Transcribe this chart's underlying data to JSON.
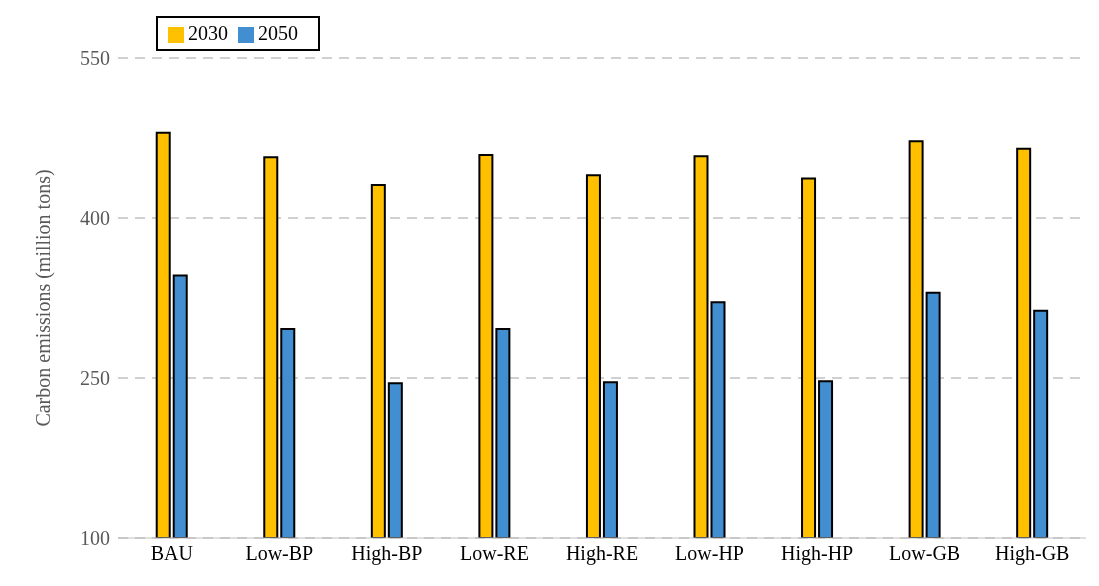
{
  "chart_data": {
    "type": "bar",
    "ylabel": "Carbon emissions (million tons)",
    "categories": [
      "BAU",
      "Low-BP",
      "High-BP",
      "Low-RE",
      "High-RE",
      "Low-HP",
      "High-HP",
      "Low-GB",
      "High-GB"
    ],
    "series": [
      {
        "name": "2030",
        "color": "#ffc000",
        "values": [
          480,
          457,
          431,
          459,
          440,
          458,
          437,
          472,
          465
        ]
      },
      {
        "name": "2050",
        "color": "#418fd0",
        "values": [
          346,
          296,
          245,
          296,
          246,
          321,
          247,
          330,
          313
        ]
      }
    ],
    "ylim": [
      100,
      550
    ],
    "yticks": [
      100,
      250,
      400,
      550
    ],
    "grid": "y",
    "legend": "top left"
  }
}
